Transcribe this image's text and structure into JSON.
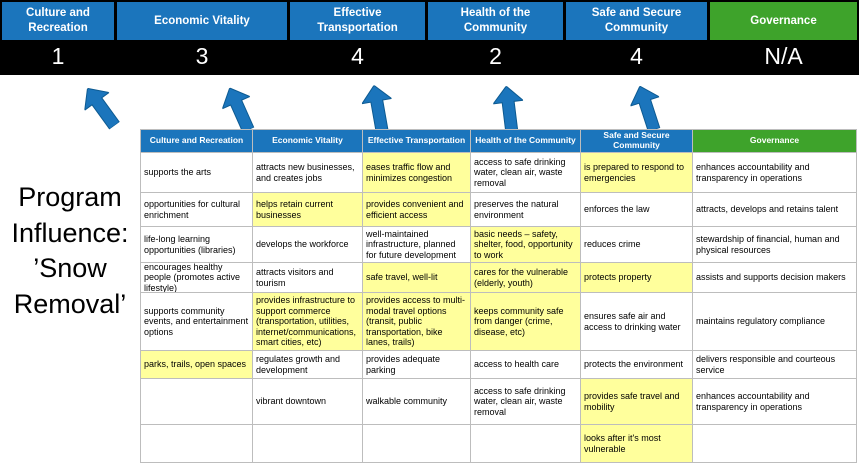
{
  "colors": {
    "blue": "#1B75BC",
    "green": "#3EA32B",
    "highlight": "#FFFF9C",
    "band": "#000000",
    "grid": "#BDBDBD"
  },
  "title": {
    "text": "Program Influence: ’Snow Removal’"
  },
  "scoreboard": {
    "columns": [
      {
        "label": "Culture and Recreation",
        "score": "1",
        "theme": "blue"
      },
      {
        "label": "Economic Vitality",
        "score": "3",
        "theme": "blue"
      },
      {
        "label": "Effective Transportation",
        "score": "4",
        "theme": "blue"
      },
      {
        "label": "Health of the Community",
        "score": "2",
        "theme": "blue"
      },
      {
        "label": "Safe and Secure Community",
        "score": "4",
        "theme": "blue"
      },
      {
        "label": "Governance",
        "score": "N/A",
        "theme": "green"
      }
    ]
  },
  "table": {
    "headers": [
      {
        "label": "Culture and Recreation",
        "theme": "blue"
      },
      {
        "label": "Economic Vitality",
        "theme": "blue"
      },
      {
        "label": "Effective Transportation",
        "theme": "blue"
      },
      {
        "label": "Health of the Community",
        "theme": "blue"
      },
      {
        "label": "Safe and Secure Community",
        "theme": "blue"
      },
      {
        "label": "Governance",
        "theme": "green"
      }
    ],
    "rows": [
      [
        {
          "text": "supports the arts",
          "hl": false
        },
        {
          "text": "attracts new businesses, and creates jobs",
          "hl": false
        },
        {
          "text": "eases traffic flow and minimizes congestion",
          "hl": true
        },
        {
          "text": "access to safe drinking water, clean air, waste removal",
          "hl": false
        },
        {
          "text": "is prepared to respond to emergencies",
          "hl": true
        },
        {
          "text": "enhances accountability and transparency in operations",
          "hl": false
        }
      ],
      [
        {
          "text": "opportunities for cultural enrichment",
          "hl": false
        },
        {
          "text": "helps retain current businesses",
          "hl": true
        },
        {
          "text": "provides convenient and efficient access",
          "hl": true
        },
        {
          "text": "preserves the natural environment",
          "hl": false
        },
        {
          "text": "enforces the law",
          "hl": false
        },
        {
          "text": "attracts, develops and retains talent",
          "hl": false
        }
      ],
      [
        {
          "text": "life-long learning opportunities (libraries)",
          "hl": false
        },
        {
          "text": "develops the workforce",
          "hl": false
        },
        {
          "text": "well-maintained infrastructure, planned for future development",
          "hl": false
        },
        {
          "text": "basic needs – safety, shelter, food, opportunity to work",
          "hl": true
        },
        {
          "text": "reduces crime",
          "hl": false
        },
        {
          "text": "stewardship of financial, human and physical resources",
          "hl": false
        }
      ],
      [
        {
          "text": "encourages healthy people (promotes active lifestyle)",
          "hl": false
        },
        {
          "text": "attracts visitors and tourism",
          "hl": false
        },
        {
          "text": "safe travel, well-lit",
          "hl": true
        },
        {
          "text": "cares for the vulnerable (elderly, youth)",
          "hl": true
        },
        {
          "text": "protects property",
          "hl": true
        },
        {
          "text": "assists and supports decision makers",
          "hl": false
        }
      ],
      [
        {
          "text": "supports community events, and entertainment options",
          "hl": false
        },
        {
          "text": "provides infrastructure to support commerce (transportation, utilities, internet/communications, smart cities, etc)",
          "hl": true
        },
        {
          "text": "provides access to multi-modal travel options (transit, public transportation, bike lanes, trails)",
          "hl": true
        },
        {
          "text": "keeps community safe from danger (crime, disease, etc)",
          "hl": true
        },
        {
          "text": "ensures safe air and access to drinking water",
          "hl": false
        },
        {
          "text": "maintains regulatory compliance",
          "hl": false
        }
      ],
      [
        {
          "text": "parks, trails, open spaces",
          "hl": true
        },
        {
          "text": "regulates growth and development",
          "hl": false
        },
        {
          "text": "provides adequate parking",
          "hl": false
        },
        {
          "text": "access to health care",
          "hl": false
        },
        {
          "text": "protects the environment",
          "hl": false
        },
        {
          "text": "delivers responsible and courteous service",
          "hl": false
        }
      ],
      [
        {
          "text": "",
          "hl": false
        },
        {
          "text": "vibrant downtown",
          "hl": false
        },
        {
          "text": "walkable community",
          "hl": false
        },
        {
          "text": "access to safe drinking water, clean air, waste removal",
          "hl": false
        },
        {
          "text": "provides safe travel and mobility",
          "hl": true
        },
        {
          "text": "enhances accountability and transparency in operations",
          "hl": false
        }
      ],
      [
        {
          "text": "",
          "hl": false
        },
        {
          "text": "",
          "hl": false
        },
        {
          "text": "",
          "hl": false
        },
        {
          "text": "",
          "hl": false
        },
        {
          "text": "looks after it's most vulnerable",
          "hl": true
        },
        {
          "text": "",
          "hl": false
        }
      ]
    ]
  }
}
